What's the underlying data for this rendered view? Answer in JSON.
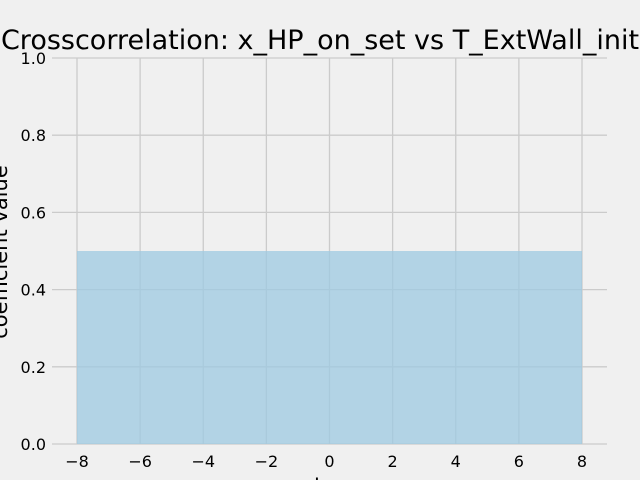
{
  "chart_data": {
    "type": "area",
    "title": "Crosscorrelation: x_HP_on_set vs T_ExtWall_init",
    "xlabel": "lag",
    "ylabel": "coefficient value",
    "xlim": [
      -8,
      8
    ],
    "ylim": [
      0,
      1
    ],
    "x_ticks": [
      "−8",
      "−6",
      "−4",
      "−2",
      "0",
      "2",
      "4",
      "6",
      "8"
    ],
    "y_ticks": [
      "0.0",
      "0.2",
      "0.4",
      "0.6",
      "0.8",
      "1.0"
    ],
    "grid": true,
    "series": [
      {
        "x": [
          -8,
          8
        ],
        "y": [
          0.5,
          0.5
        ]
      }
    ],
    "colors": {
      "fill": "#9ecae1",
      "grid": "#cbcbcb",
      "background": "#f0f0f0"
    }
  }
}
